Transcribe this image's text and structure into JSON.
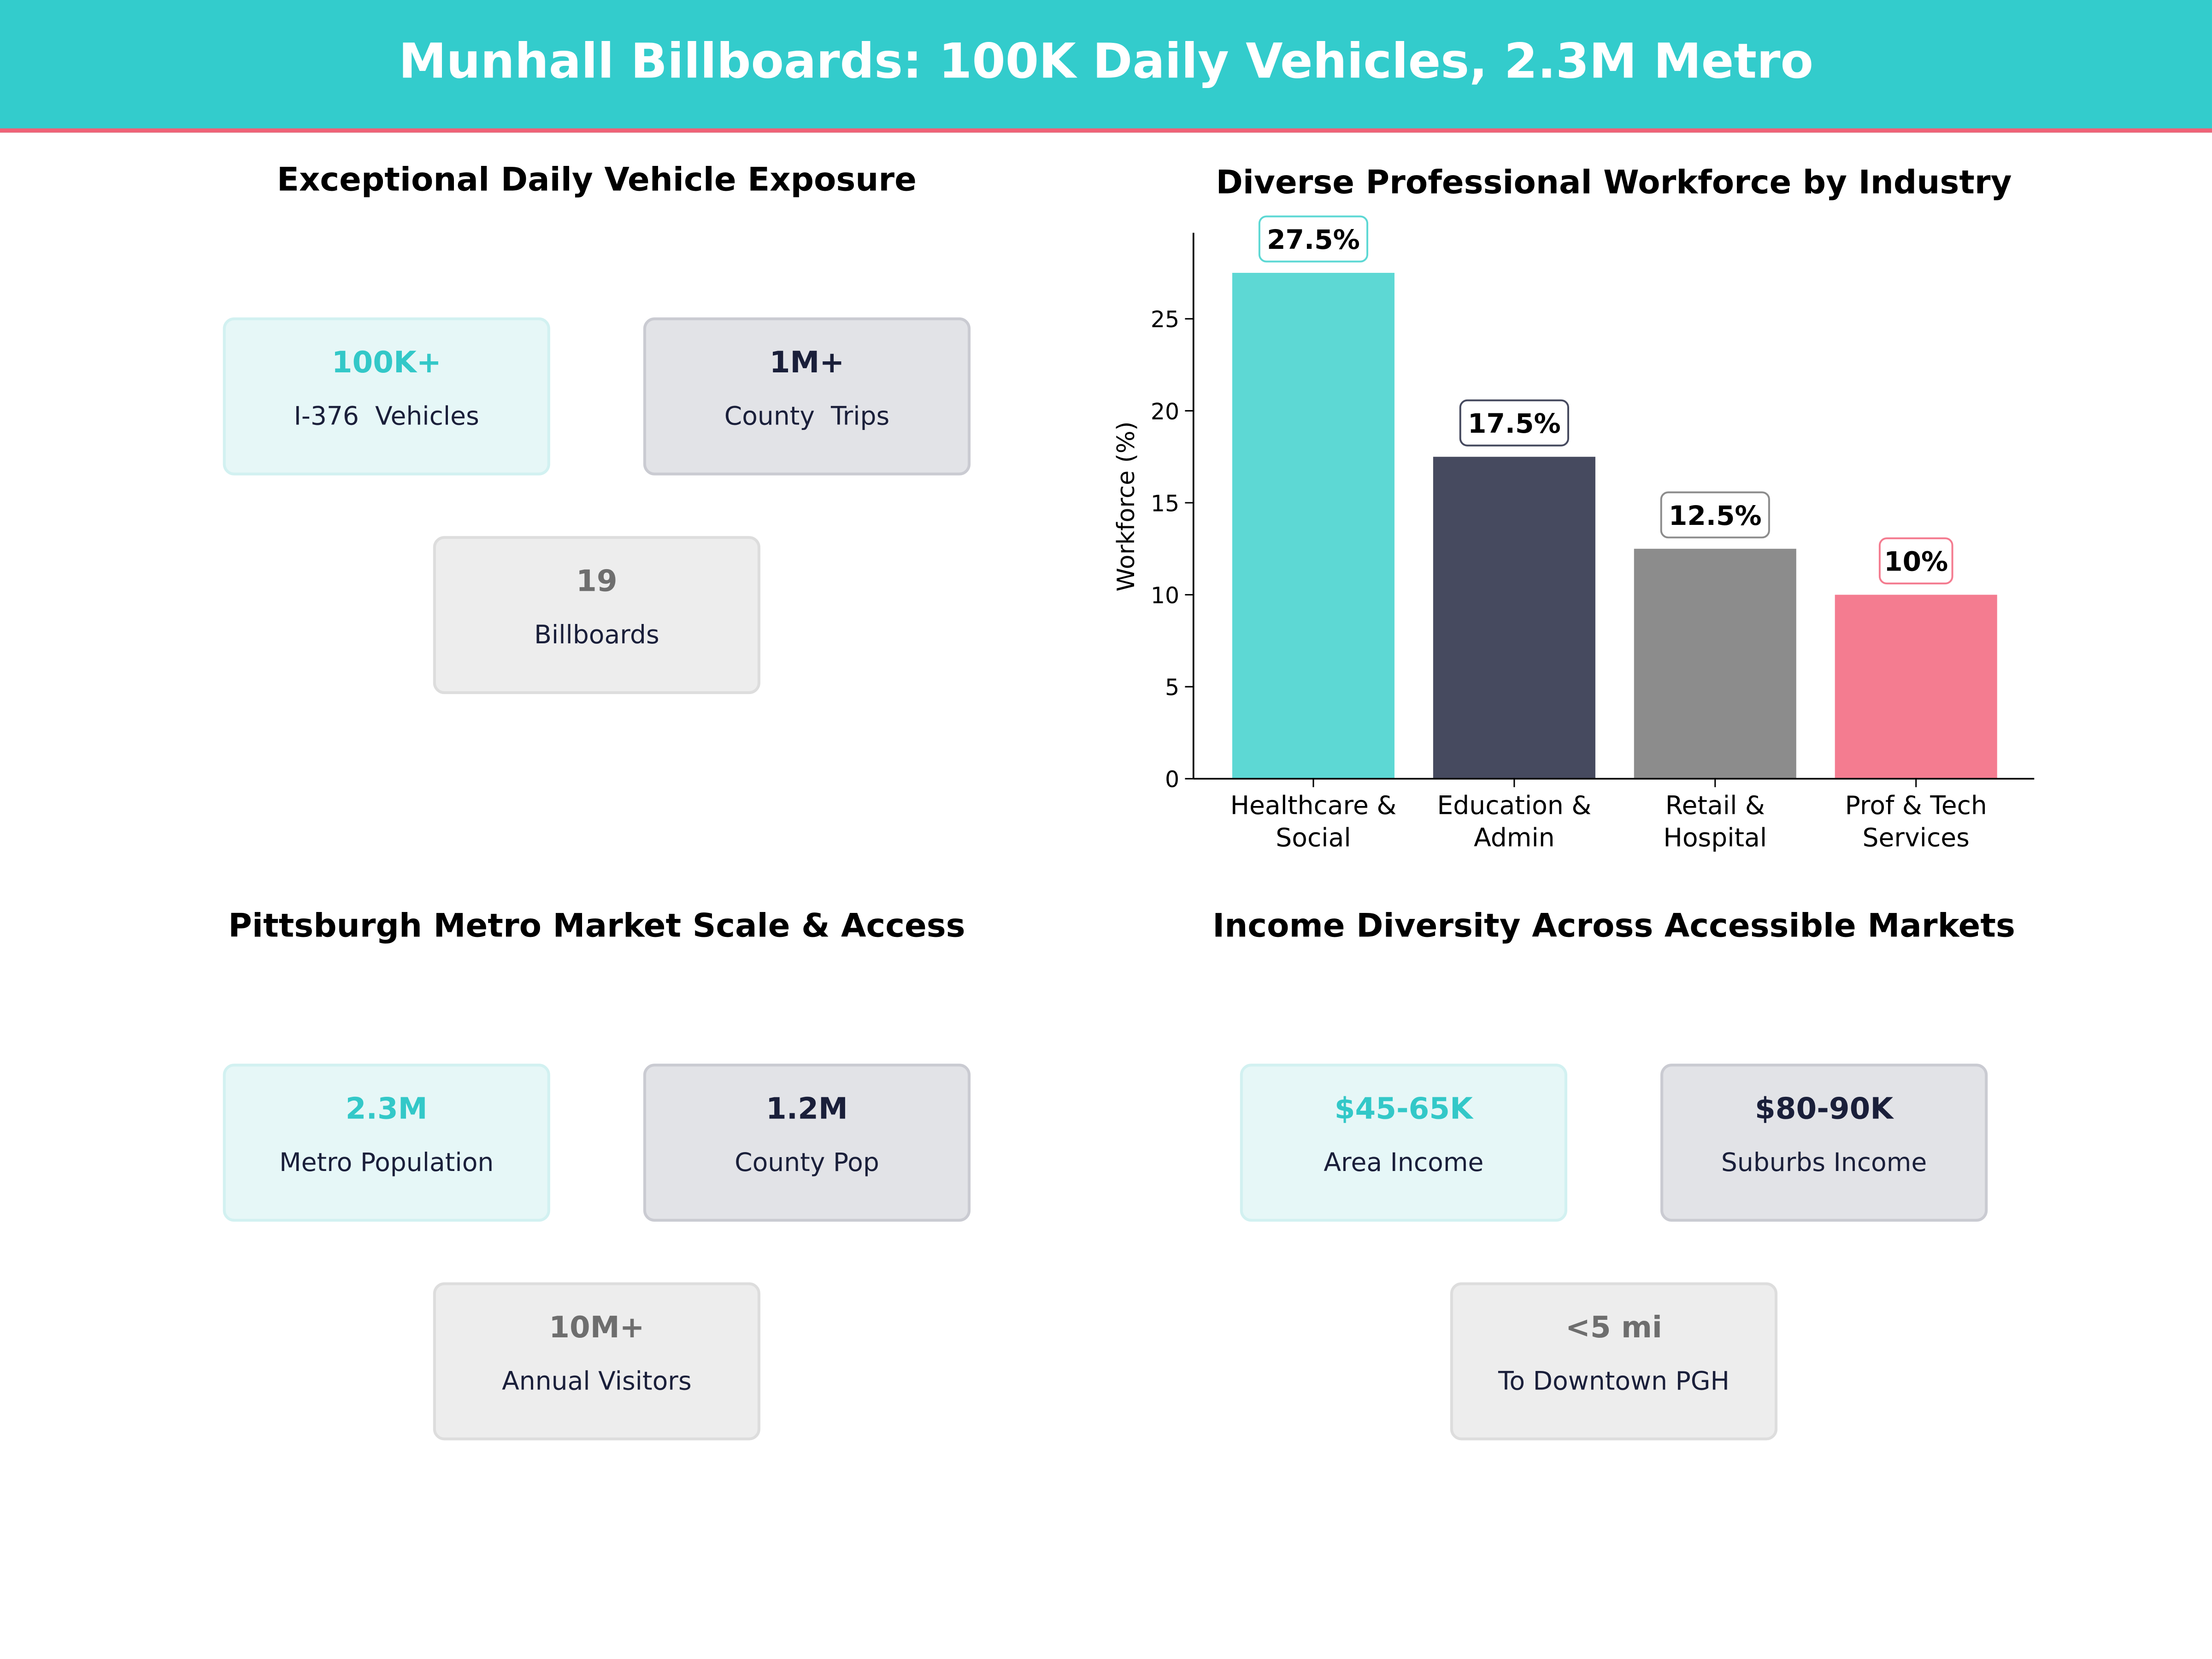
{
  "header": {
    "title": "Munhall Billboards: 100K Daily Vehicles, 2.3M Metro"
  },
  "panels": {
    "exposure": {
      "title": "Exceptional Daily Vehicle Exposure",
      "cards": [
        {
          "value": "100K+",
          "label": "I-376  Vehicles"
        },
        {
          "value": "1M+",
          "label": "County  Trips"
        },
        {
          "value": "19",
          "label": "Billboards"
        }
      ]
    },
    "metro": {
      "title": "Pittsburgh Metro Market Scale & Access",
      "cards": [
        {
          "value": "2.3M",
          "label": "Metro Population"
        },
        {
          "value": "1.2M",
          "label": "County Pop"
        },
        {
          "value": "10M+",
          "label": "Annual Visitors"
        }
      ]
    },
    "income": {
      "title": "Income Diversity Across Accessible Markets",
      "cards": [
        {
          "value": "$45-65K",
          "label": "Area Income"
        },
        {
          "value": "$80-90K",
          "label": "Suburbs Income"
        },
        {
          "value": "<5 mi",
          "label": "To Downtown PGH"
        }
      ]
    }
  },
  "chart_data": {
    "type": "bar",
    "title": "Diverse Professional Workforce by Industry",
    "categories": [
      "Healthcare &\nSocial",
      "Education &\nAdmin",
      "Retail &\nHospital",
      "Prof & Tech\nServices"
    ],
    "values": [
      27.5,
      17.5,
      12.5,
      10
    ],
    "data_labels": [
      "27.5%",
      "17.5%",
      "12.5%",
      "10%"
    ],
    "colors": [
      "#5DD8D4",
      "#464A5F",
      "#8C8C8C",
      "#F47C90"
    ],
    "xlabel": "",
    "ylabel": "Workforce (%)",
    "ylim": [
      0,
      29.8
    ],
    "yticks": [
      0,
      5,
      10,
      15,
      20,
      25
    ],
    "grid": false
  }
}
